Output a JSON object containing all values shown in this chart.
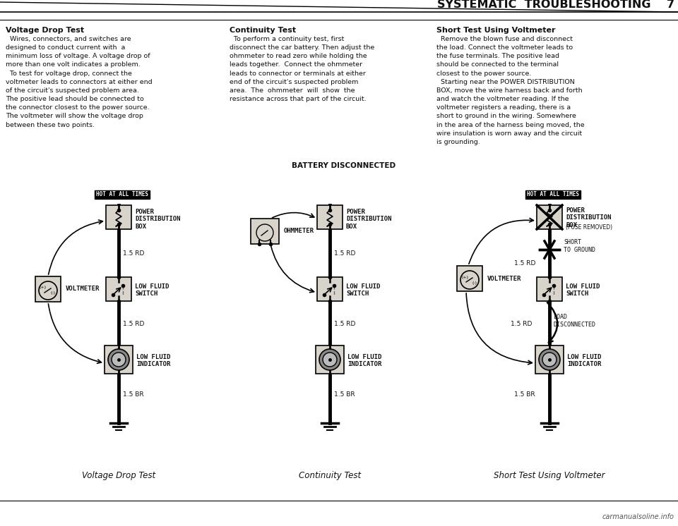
{
  "bg_color": "#ffffff",
  "title_text": "SYSTEMATIC  TROUBLESHOOTING    7",
  "title_fontsize": 12,
  "section1_title": "Voltage Drop Test",
  "section1_body": "  Wires, connectors, and switches are\ndesigned to conduct current with  a\nminimum loss of voltage. A voltage drop of\nmore than one volt indicates a problem.\n  To test for voltage drop, connect the\nvoltmeter leads to connectors at either end\nof the circuit's suspected problem area.\nThe positive lead should be connected to\nthe connector closest to the power source.\nThe voltmeter will show the voltage drop\nbetween these two points.",
  "section2_title": "Continuity Test",
  "section2_body": "  To perform a continuity test, first\ndisconnect the car battery. Then adjust the\nohmmeter to read zero while holding the\nleads together.  Connect the ohmmeter\nleads to connector or terminals at either\nend of the circuit's suspected problem\narea.  The  ohmmeter  will  show  the\nresistance across that part of the circuit.",
  "section3_title": "Short Test Using Voltmeter",
  "section3_body": "  Remove the blown fuse and disconnect\nthe load. Connect the voltmeter leads to\nthe fuse terminals. The positive lead\nshould be connected to the terminal\nclosest to the power source.\n  Starting near the POWER DISTRIBUTION\nBOX, move the wire harness back and forth\nand watch the voltmeter reading. If the\nvoltmeter registers a reading, there is a\nshort to ground in the wiring. Somewhere\nin the area of the harness being moved, the\nwire insulation is worn away and the circuit\nis grounding.",
  "diag1_label": "Voltage Drop Test",
  "diag2_label": "Continuity Test",
  "diag3_label": "Short Test Using Voltmeter",
  "label_hot_at_all_times": "HOT AT ALL TIMES",
  "label_power_dist_box": "POWER\nDISTRIBUTION\nBOX",
  "label_low_fluid_switch": "LOW FLUID\nSWITCH",
  "label_low_fluid_indicator": "LOW FLUID\nINDICATOR",
  "label_voltmeter": "VOLTMETER",
  "label_ohmmeter": "OHMMETER",
  "label_battery_disconnected": "BATTERY DISCONNECTED",
  "label_15rd": "1.5 RD",
  "label_15br": "1.5 BR",
  "label_short_to_ground": "SHORT\nTO GROUND",
  "label_load_disconnected": "LOAD\nDISCONNECTED",
  "label_fuse_removed": "(FUSE REMOVED)",
  "wire_color": "#000000",
  "box_face": "#d8d4cc",
  "text_color": "#111111",
  "branding": "carmanualsoline.info"
}
